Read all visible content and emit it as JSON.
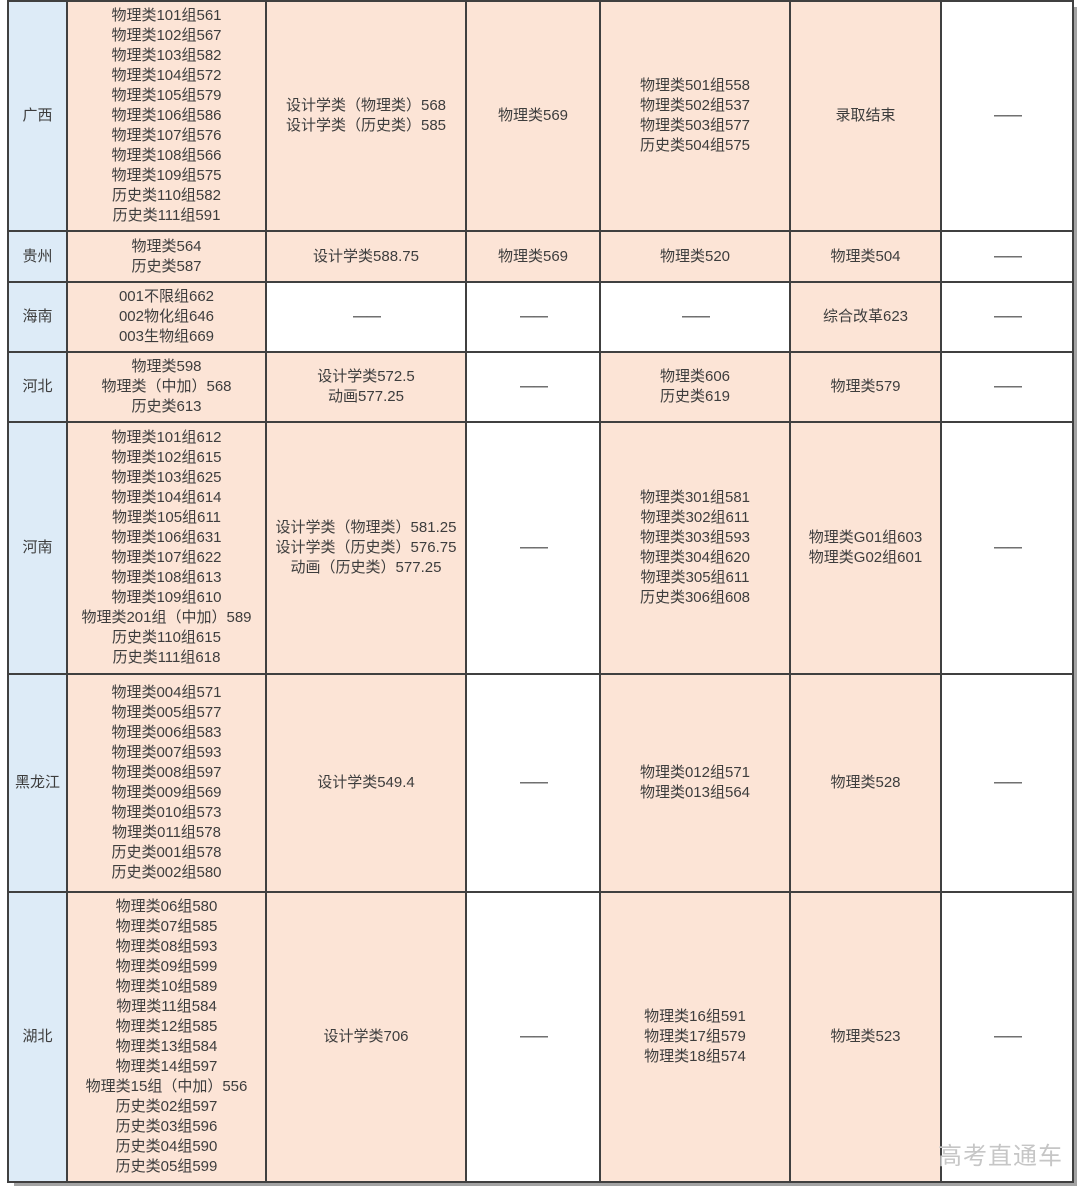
{
  "theme": {
    "peach": "#FCE4D6",
    "blue": "#DDEBF7",
    "border": "#404040",
    "text": "#3D3D3D",
    "dash_color": "#6E6E6E",
    "watermark_color": "#C6C6C6"
  },
  "dash": "——",
  "watermark": "高考直通车",
  "rows": [
    {
      "province": "广西",
      "cells": [
        {
          "bg": "peach",
          "lines": [
            "物理类101组561",
            "物理类102组567",
            "物理类103组582",
            "物理类104组572",
            "物理类105组579",
            "物理类106组586",
            "物理类107组576",
            "物理类108组566",
            "物理类109组575",
            "历史类110组582",
            "历史类111组591"
          ]
        },
        {
          "bg": "peach",
          "lines": [
            "设计学类（物理类）568",
            "设计学类（历史类）585"
          ]
        },
        {
          "bg": "peach",
          "lines": [
            "物理类569"
          ]
        },
        {
          "bg": "peach",
          "lines": [
            "物理类501组558",
            "物理类502组537",
            "物理类503组577",
            "历史类504组575"
          ]
        },
        {
          "bg": "peach",
          "lines": [
            "录取结束"
          ]
        },
        {
          "bg": "white",
          "lines": [
            "——"
          ]
        }
      ]
    },
    {
      "province": "贵州",
      "cells": [
        {
          "bg": "peach",
          "lines": [
            "物理类564",
            "历史类587"
          ]
        },
        {
          "bg": "peach",
          "lines": [
            "设计学类588.75"
          ]
        },
        {
          "bg": "peach",
          "lines": [
            "物理类569"
          ]
        },
        {
          "bg": "peach",
          "lines": [
            "物理类520"
          ]
        },
        {
          "bg": "peach",
          "lines": [
            "物理类504"
          ]
        },
        {
          "bg": "white",
          "lines": [
            "——"
          ]
        }
      ]
    },
    {
      "province": "海南",
      "cells": [
        {
          "bg": "peach",
          "lines": [
            "001不限组662",
            "002物化组646",
            "003生物组669"
          ]
        },
        {
          "bg": "white",
          "lines": [
            "——"
          ]
        },
        {
          "bg": "white",
          "lines": [
            "——"
          ]
        },
        {
          "bg": "white",
          "lines": [
            "——"
          ]
        },
        {
          "bg": "peach",
          "lines": [
            "综合改革623"
          ]
        },
        {
          "bg": "white",
          "lines": [
            "——"
          ]
        }
      ]
    },
    {
      "province": "河北",
      "cells": [
        {
          "bg": "peach",
          "lines": [
            "物理类598",
            "物理类（中加）568",
            "历史类613"
          ]
        },
        {
          "bg": "peach",
          "lines": [
            "设计学类572.5",
            "动画577.25"
          ]
        },
        {
          "bg": "white",
          "lines": [
            "——"
          ]
        },
        {
          "bg": "peach",
          "lines": [
            "物理类606",
            "历史类619"
          ]
        },
        {
          "bg": "peach",
          "lines": [
            "物理类579"
          ]
        },
        {
          "bg": "white",
          "lines": [
            "——"
          ]
        }
      ]
    },
    {
      "province": "河南",
      "cells": [
        {
          "bg": "peach",
          "lines": [
            "物理类101组612",
            "物理类102组615",
            "物理类103组625",
            "物理类104组614",
            "物理类105组611",
            "物理类106组631",
            "物理类107组622",
            "物理类108组613",
            "物理类109组610",
            "物理类201组（中加）589",
            "历史类110组615",
            "历史类111组618"
          ]
        },
        {
          "bg": "peach",
          "lines": [
            "设计学类（物理类）581.25",
            "设计学类（历史类）576.75",
            "动画（历史类）577.25"
          ]
        },
        {
          "bg": "white",
          "lines": [
            "——"
          ]
        },
        {
          "bg": "peach",
          "lines": [
            "物理类301组581",
            "物理类302组611",
            "物理类303组593",
            "物理类304组620",
            "物理类305组611",
            "历史类306组608"
          ]
        },
        {
          "bg": "peach",
          "lines": [
            "物理类G01组603",
            "物理类G02组601"
          ]
        },
        {
          "bg": "white",
          "lines": [
            "——"
          ]
        }
      ]
    },
    {
      "province": "黑龙江",
      "cells": [
        {
          "bg": "peach",
          "lines": [
            "物理类004组571",
            "物理类005组577",
            "物理类006组583",
            "物理类007组593",
            "物理类008组597",
            "物理类009组569",
            "物理类010组573",
            "物理类011组578",
            "历史类001组578",
            "历史类002组580"
          ]
        },
        {
          "bg": "peach",
          "lines": [
            "设计学类549.4"
          ]
        },
        {
          "bg": "white",
          "lines": [
            "——"
          ]
        },
        {
          "bg": "peach",
          "lines": [
            "物理类012组571",
            "物理类013组564"
          ]
        },
        {
          "bg": "peach",
          "lines": [
            "物理类528"
          ]
        },
        {
          "bg": "white",
          "lines": [
            "——"
          ]
        }
      ]
    },
    {
      "province": "湖北",
      "cells": [
        {
          "bg": "peach",
          "lines": [
            "物理类06组580",
            "物理类07组585",
            "物理类08组593",
            "物理类09组599",
            "物理类10组589",
            "物理类11组584",
            "物理类12组585",
            "物理类13组584",
            "物理类14组597",
            "物理类15组（中加）556",
            "历史类02组597",
            "历史类03组596",
            "历史类04组590",
            "历史类05组599"
          ]
        },
        {
          "bg": "peach",
          "lines": [
            "设计学类706"
          ]
        },
        {
          "bg": "white",
          "lines": [
            "——"
          ]
        },
        {
          "bg": "peach",
          "lines": [
            "物理类16组591",
            "物理类17组579",
            "物理类18组574"
          ]
        },
        {
          "bg": "peach",
          "lines": [
            "物理类523"
          ]
        },
        {
          "bg": "white",
          "lines": [
            "——"
          ]
        }
      ]
    }
  ]
}
